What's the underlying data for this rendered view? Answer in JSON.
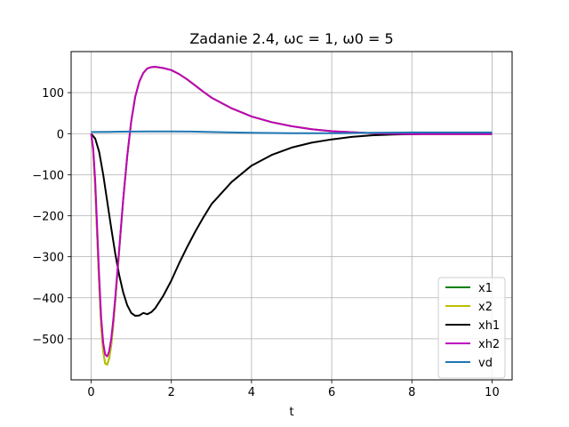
{
  "chart_data": {
    "type": "line",
    "title": "Zadanie 2.4, ωc = 1, ω0 = 5",
    "xlabel": "t",
    "ylabel": "",
    "xlim": [
      -0.5,
      10.5
    ],
    "ylim": [
      -600,
      200
    ],
    "xticks": [
      0,
      2,
      4,
      6,
      8,
      10
    ],
    "xtick_labels": [
      "0",
      "2",
      "4",
      "6",
      "8",
      "10"
    ],
    "yticks": [
      -500,
      -400,
      -300,
      -200,
      -100,
      0,
      100
    ],
    "ytick_labels": [
      "−500",
      "−400",
      "−300",
      "−200",
      "−100",
      "0",
      "100"
    ],
    "grid": true,
    "legend_position": "lower right",
    "series": [
      {
        "name": "x1",
        "color": "#008000",
        "x": [
          0,
          0.05,
          0.1,
          0.15,
          0.2,
          0.25,
          0.3,
          0.35,
          0.4,
          0.45,
          0.5,
          0.55,
          0.6,
          0.7,
          0.8,
          0.9,
          1.0,
          1.1,
          1.2,
          1.3,
          1.4,
          1.5,
          1.6,
          1.8,
          2.0,
          2.2,
          2.4,
          2.6,
          2.8,
          3.0,
          3.5,
          4.0,
          4.5,
          5.0,
          5.5,
          6.0,
          7.0,
          8.0,
          9.0,
          10.0
        ],
        "y": [
          0,
          -40,
          -130,
          -250,
          -370,
          -470,
          -530,
          -560,
          -563,
          -548,
          -515,
          -468,
          -410,
          -285,
          -160,
          -55,
          30,
          90,
          127,
          148,
          159,
          162,
          163,
          160,
          155,
          145,
          132,
          117,
          102,
          88,
          62,
          42,
          28,
          18,
          11,
          6,
          1,
          -1,
          -1,
          -1
        ]
      },
      {
        "name": "x2",
        "color": "#bfbf00",
        "x": [
          0,
          0.05,
          0.1,
          0.15,
          0.2,
          0.25,
          0.3,
          0.35,
          0.4,
          0.45,
          0.5,
          0.55,
          0.6,
          0.7,
          0.8,
          0.9,
          1.0,
          1.1,
          1.2,
          1.3,
          1.4,
          1.5,
          1.6,
          1.8,
          2.0,
          2.2,
          2.4,
          2.6,
          2.8,
          3.0,
          3.5,
          4.0,
          4.5,
          5.0,
          5.5,
          6.0,
          7.0,
          8.0,
          9.0,
          10.0
        ],
        "y": [
          0,
          -40,
          -130,
          -250,
          -370,
          -470,
          -530,
          -560,
          -563,
          -548,
          -515,
          -468,
          -410,
          -285,
          -160,
          -55,
          30,
          90,
          127,
          148,
          159,
          162,
          163,
          160,
          155,
          145,
          132,
          117,
          102,
          88,
          62,
          42,
          28,
          18,
          11,
          6,
          1,
          -1,
          -1,
          -1
        ]
      },
      {
        "name": "xh1",
        "color": "#000000",
        "x": [
          0,
          0.1,
          0.2,
          0.3,
          0.4,
          0.5,
          0.6,
          0.7,
          0.8,
          0.9,
          1.0,
          1.1,
          1.2,
          1.3,
          1.4,
          1.5,
          1.6,
          1.8,
          2.0,
          2.2,
          2.4,
          2.6,
          2.8,
          3.0,
          3.5,
          4.0,
          4.5,
          5.0,
          5.5,
          6.0,
          6.5,
          7.0,
          7.5,
          8.0,
          8.5,
          9.0,
          9.5,
          10.0
        ],
        "y": [
          0,
          -12,
          -45,
          -100,
          -165,
          -230,
          -292,
          -345,
          -387,
          -418,
          -437,
          -444,
          -443,
          -437,
          -440,
          -435,
          -425,
          -395,
          -358,
          -315,
          -275,
          -238,
          -204,
          -172,
          -118,
          -78,
          -52,
          -34,
          -22,
          -14,
          -8,
          -4,
          -2,
          -1,
          0,
          0,
          0,
          0
        ]
      },
      {
        "name": "xh2",
        "color": "#bf00bf",
        "x": [
          0,
          0.05,
          0.1,
          0.15,
          0.2,
          0.25,
          0.3,
          0.35,
          0.4,
          0.45,
          0.5,
          0.55,
          0.6,
          0.7,
          0.8,
          0.9,
          1.0,
          1.1,
          1.2,
          1.3,
          1.4,
          1.5,
          1.6,
          1.8,
          2.0,
          2.2,
          2.4,
          2.6,
          2.8,
          3.0,
          3.5,
          4.0,
          4.5,
          5.0,
          5.5,
          6.0,
          7.0,
          8.0,
          9.0,
          10.0
        ],
        "y": [
          0,
          -35,
          -115,
          -230,
          -350,
          -448,
          -510,
          -538,
          -543,
          -530,
          -500,
          -456,
          -400,
          -280,
          -160,
          -55,
          30,
          90,
          127,
          148,
          159,
          162,
          163,
          160,
          155,
          145,
          132,
          117,
          102,
          88,
          62,
          42,
          28,
          18,
          11,
          6,
          1,
          -1,
          -1,
          -1
        ]
      },
      {
        "name": "vd",
        "color": "#1f77b4",
        "x": [
          0,
          0.5,
          1.0,
          1.5,
          2.0,
          2.5,
          3.0,
          4.0,
          5.0,
          6.0,
          7.0,
          8.0,
          9.0,
          10.0
        ],
        "y": [
          4,
          4.5,
          5,
          5.5,
          5.5,
          5,
          4,
          2,
          1,
          1,
          2,
          3,
          3,
          3
        ]
      }
    ]
  }
}
